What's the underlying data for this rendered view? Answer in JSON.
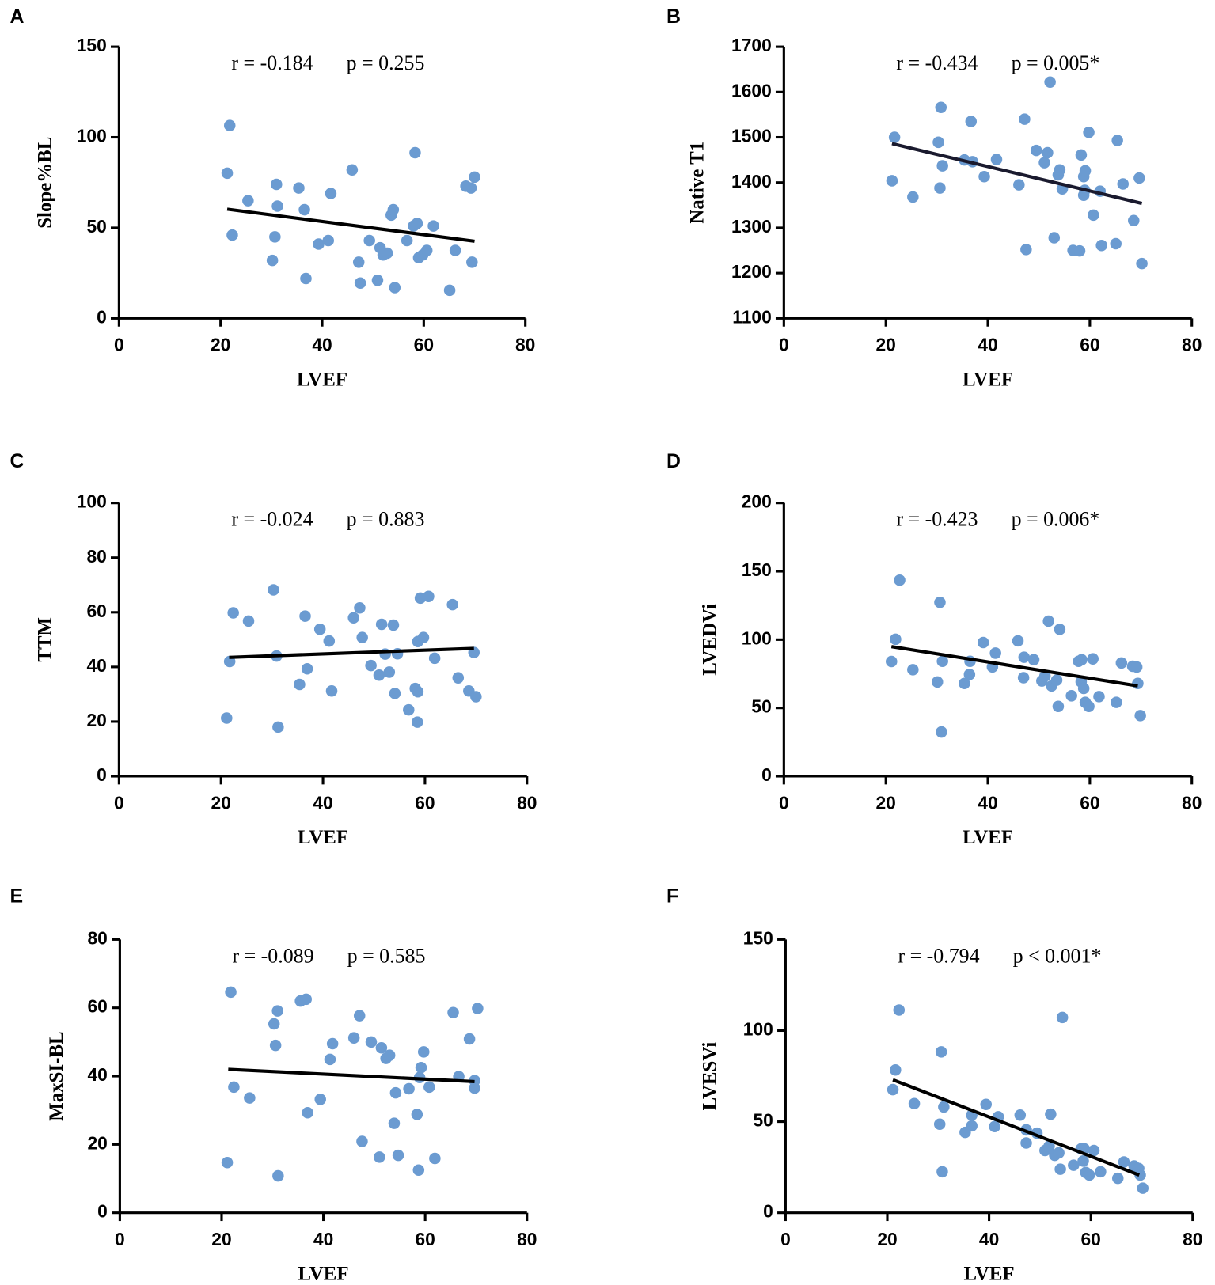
{
  "chart_data": [
    {
      "type": "scatter",
      "panel_label": "A",
      "annotations": [
        "r = -0.184",
        "p = 0.255"
      ],
      "x_label": "LVEF",
      "y_label": "Slope%BL",
      "color": "#6b9bd1",
      "xlim": [
        0,
        80
      ],
      "xticks": [
        0,
        20,
        40,
        60,
        80
      ],
      "ylim": [
        0,
        150
      ],
      "yticks": [
        0,
        50,
        100,
        150
      ],
      "x": [
        21.3,
        21.8,
        22.3,
        25.4,
        31,
        31.2,
        30.7,
        30.2,
        35.4,
        36.5,
        36.8,
        39.3,
        41.2,
        41.7,
        45.9,
        47.2,
        47.5,
        49.3,
        50.9,
        51.4,
        52,
        52.8,
        53.6,
        54,
        54.3,
        56.7,
        58,
        58.3,
        58.7,
        59,
        59.8,
        60.6,
        61.9,
        65.1,
        66.2,
        68.3,
        69.3,
        69.5,
        70
      ],
      "y": [
        80.2,
        106.5,
        46,
        65,
        74,
        62,
        45,
        32,
        72,
        60,
        22,
        41,
        43,
        69,
        82,
        31,
        19.5,
        43,
        21,
        39,
        35,
        36,
        57,
        60,
        17,
        43,
        51,
        91.5,
        52.5,
        33.5,
        35,
        37.5,
        51,
        15.5,
        37.5,
        73,
        72,
        31,
        78
      ],
      "trendline": {
        "x": [
          21.3,
          70
        ],
        "y": [
          60.3,
          42.6
        ],
        "color": "#000000"
      }
    },
    {
      "type": "scatter",
      "panel_label": "B",
      "annotations": [
        "r = -0.434",
        "p = 0.005*"
      ],
      "x_label": "LVEF",
      "y_label": "Native T1",
      "color": "#6b9bd1",
      "xlim": [
        0,
        80
      ],
      "xticks": [
        0,
        20,
        40,
        60,
        80
      ],
      "ylim": [
        1100,
        1700
      ],
      "yticks": [
        1100,
        1200,
        1300,
        1400,
        1500,
        1600,
        1700
      ],
      "x": [
        21.7,
        21.2,
        25.3,
        30.8,
        30.3,
        31.1,
        30.6,
        35.4,
        36.7,
        37,
        39.3,
        41.7,
        46.1,
        47.2,
        47.5,
        49.5,
        51.1,
        51.7,
        52.2,
        53,
        53.8,
        54.1,
        54.6,
        56.7,
        58,
        58.3,
        58.8,
        58.8,
        59.1,
        59,
        59.8,
        60.7,
        62,
        62.3,
        65.1,
        65.4,
        66.5,
        68.6,
        69.7,
        70.2
      ],
      "y": [
        1500,
        1404,
        1368,
        1566,
        1489,
        1437,
        1388,
        1450,
        1535,
        1446,
        1413,
        1451,
        1395,
        1540,
        1252,
        1471,
        1444,
        1466,
        1622,
        1278,
        1417,
        1428,
        1386,
        1250,
        1249,
        1461,
        1413,
        1372,
        1426,
        1383,
        1511,
        1328,
        1381,
        1261,
        1265,
        1493,
        1397,
        1316,
        1410,
        1221
      ],
      "trendline": {
        "x": [
          21.2,
          70.2
        ],
        "y": [
          1486,
          1354
        ],
        "color": "#1a1a2e"
      }
    },
    {
      "type": "scatter",
      "panel_label": "C",
      "annotations": [
        "r = -0.024",
        "p = 0.883"
      ],
      "x_label": "LVEF",
      "y_label": "TTM",
      "color": "#6b9bd1",
      "xlim": [
        0,
        80
      ],
      "xticks": [
        0,
        20,
        40,
        60,
        80
      ],
      "ylim": [
        0,
        100
      ],
      "yticks": [
        0,
        20,
        40,
        60,
        80,
        100
      ],
      "x": [
        21.1,
        21.7,
        22.4,
        25.4,
        30.3,
        30.9,
        31.2,
        35.4,
        36.5,
        36.9,
        39.4,
        41.2,
        41.7,
        46,
        47.2,
        47.7,
        49.4,
        51,
        51.5,
        52.2,
        53,
        53.8,
        54.1,
        54.6,
        56.8,
        58.1,
        58.6,
        58.5,
        58.6,
        59.1,
        59.7,
        60.7,
        61.9,
        65.4,
        66.5,
        68.6,
        69.6,
        70
      ],
      "y": [
        21.3,
        42,
        59.8,
        56.8,
        68.2,
        44,
        18,
        33.6,
        58.6,
        39.3,
        53.8,
        49.5,
        31.2,
        58,
        61.6,
        50.8,
        40.5,
        37,
        55.6,
        44.7,
        38.1,
        55.3,
        30.3,
        44.8,
        24.3,
        32.1,
        30.9,
        19.8,
        49.3,
        65.2,
        50.8,
        65.8,
        43.2,
        62.8,
        36,
        31.2,
        45.3,
        29.1
      ],
      "trendline": {
        "x": [
          21.6,
          69.6
        ],
        "y": [
          43.5,
          46.8
        ],
        "color": "#000000"
      }
    },
    {
      "type": "scatter",
      "panel_label": "D",
      "annotations": [
        "r = -0.423",
        "p = 0.006*"
      ],
      "x_label": "LVEF",
      "y_label": "LVEDVi",
      "color": "#6b9bd1",
      "xlim": [
        0,
        80
      ],
      "xticks": [
        0,
        20,
        40,
        60,
        80
      ],
      "ylim": [
        0,
        200
      ],
      "yticks": [
        0,
        50,
        100,
        150,
        200
      ],
      "x": [
        22.7,
        21.9,
        21.1,
        25.3,
        30.6,
        31.1,
        30.1,
        30.9,
        35.4,
        36.5,
        36.4,
        39.1,
        40.9,
        41.5,
        45.9,
        47.1,
        47,
        49,
        50.6,
        51.2,
        51.9,
        52.5,
        53.5,
        54.1,
        53.8,
        56.4,
        57.8,
        58.4,
        58.3,
        58.8,
        59.1,
        59.8,
        60.6,
        61.8,
        65.2,
        66.2,
        68.4,
        69.2,
        69.4,
        69.9
      ],
      "y": [
        143.5,
        100.3,
        84,
        78,
        127.3,
        84.1,
        69,
        32.4,
        67.9,
        84.1,
        74.5,
        97.9,
        80,
        90.1,
        99.1,
        87.1,
        72.1,
        85.3,
        69.7,
        73.3,
        113.5,
        66.1,
        70.3,
        107.5,
        51.1,
        58.9,
        84.1,
        85.3,
        69.1,
        64.3,
        54.1,
        51.1,
        85.9,
        58.3,
        54.1,
        82.9,
        80.5,
        79.9,
        67.9,
        44.4
      ],
      "trendline": {
        "x": [
          21.1,
          69.4
        ],
        "y": [
          94.9,
          66.1
        ],
        "color": "#000000"
      }
    },
    {
      "type": "scatter",
      "panel_label": "E",
      "annotations": [
        "r = -0.089",
        "p = 0.585"
      ],
      "x_label": "LVEF",
      "y_label": "MaxSI-BL",
      "color": "#6b9bd1",
      "xlim": [
        0,
        80
      ],
      "xticks": [
        0,
        20,
        40,
        60,
        80
      ],
      "ylim": [
        0,
        80
      ],
      "yticks": [
        0,
        20,
        40,
        60,
        80
      ],
      "x": [
        21.8,
        21.1,
        22.4,
        25.5,
        30.3,
        31,
        30.6,
        31.1,
        35.5,
        36.6,
        36.9,
        39.4,
        41.3,
        41.8,
        46,
        47.1,
        47.6,
        49.4,
        51,
        51.4,
        52.3,
        53,
        53.9,
        54.2,
        54.7,
        56.8,
        58.4,
        58.7,
        58.9,
        59.2,
        59.7,
        60.8,
        61.9,
        65.5,
        66.6,
        68.7,
        69.7,
        69.7,
        70.3
      ],
      "y": [
        64.6,
        14.7,
        36.8,
        33.6,
        55.3,
        59.1,
        49,
        10.8,
        62,
        62.5,
        29.3,
        33.2,
        44.9,
        49.5,
        51.2,
        57.7,
        20.9,
        50,
        16.3,
        48.3,
        45.2,
        46.1,
        26.2,
        35.1,
        16.8,
        36.3,
        28.8,
        12.5,
        39.6,
        42.5,
        47.1,
        36.8,
        15.9,
        58.6,
        39.9,
        50.9,
        38.7,
        36.5,
        59.8
      ],
      "trendline": {
        "x": [
          21.3,
          69.7
        ],
        "y": [
          42,
          38.4
        ],
        "color": "#000000"
      }
    },
    {
      "type": "scatter",
      "panel_label": "F",
      "annotations": [
        "r = -0.794",
        "p < 0.001*"
      ],
      "x_label": "LVEF",
      "y_label": "LVESVi",
      "color": "#6b9bd1",
      "xlim": [
        0,
        80
      ],
      "xticks": [
        0,
        20,
        40,
        60,
        80
      ],
      "ylim": [
        0,
        150
      ],
      "yticks": [
        0,
        50,
        100,
        150
      ],
      "x": [
        22.3,
        21.6,
        21.1,
        25.3,
        30.6,
        31.1,
        30.3,
        30.8,
        35.3,
        36.6,
        36.6,
        39.4,
        41.1,
        41.8,
        46.1,
        47.3,
        47.3,
        49.4,
        51,
        51.8,
        52.1,
        52.9,
        53.7,
        54,
        54.4,
        56.6,
        58.1,
        58.7,
        58.5,
        59,
        59.7,
        60.6,
        61.9,
        65.3,
        66.5,
        68.5,
        69.4,
        69.7,
        70.2
      ],
      "y": [
        111.3,
        78.4,
        67.6,
        59.9,
        88.3,
        58.1,
        48.6,
        22.5,
        44.1,
        53.6,
        47.7,
        59.5,
        47.3,
        52.7,
        53.6,
        45.5,
        38.3,
        43.7,
        34.2,
        36.5,
        54.1,
        31.5,
        32.9,
        23.9,
        107.2,
        26.1,
        35.1,
        35.1,
        28.4,
        22.1,
        20.7,
        34.2,
        22.5,
        18.9,
        27.9,
        25.7,
        24.3,
        20.7,
        13.5
      ],
      "trendline": {
        "x": [
          21.1,
          69.5
        ],
        "y": [
          73,
          20.7
        ],
        "color": "#000000"
      }
    }
  ]
}
